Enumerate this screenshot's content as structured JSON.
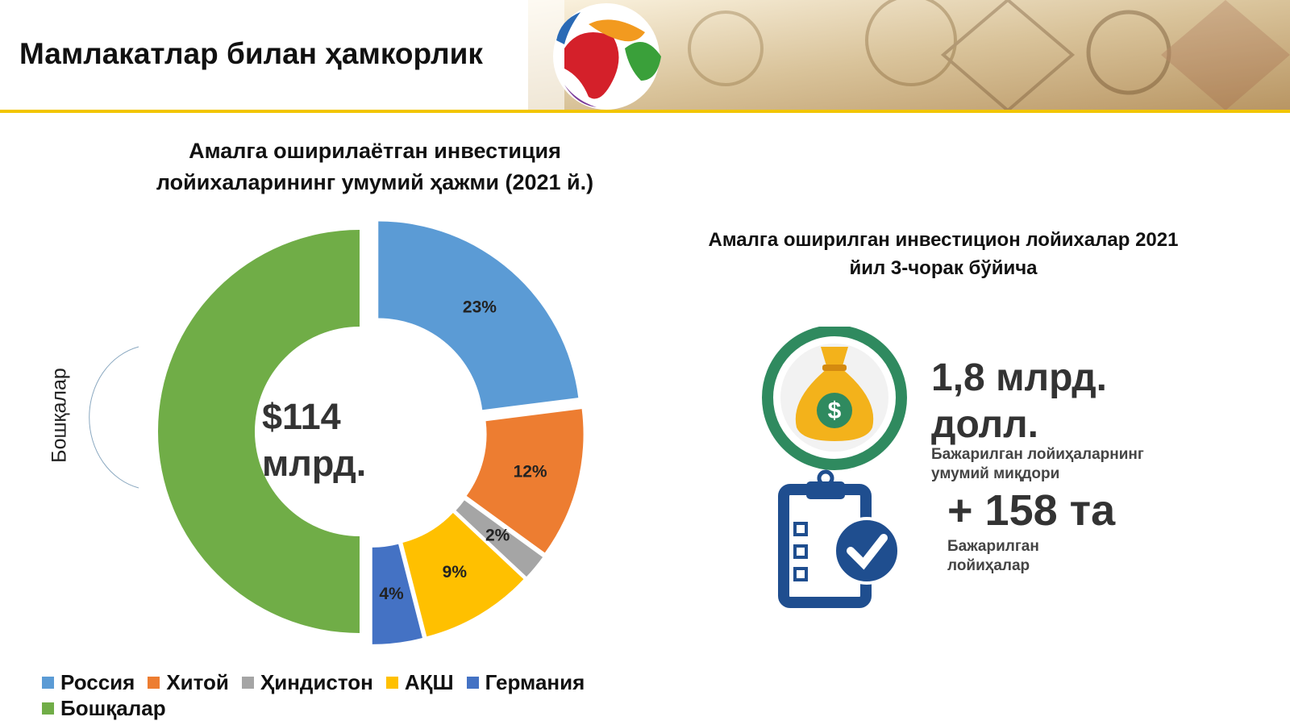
{
  "header": {
    "title": "Мамлакатлар билан ҳамкорлик"
  },
  "chart_data": {
    "type": "donut",
    "title": "Амалга оширилаётган инвестиция лойихаларининг умумий ҳажми (2021 й.)",
    "center_label": "$114 млрд.",
    "side_label": "Бошқалар",
    "categories": [
      "Россия",
      "Хитой",
      "Ҳиндистон",
      "АҚШ",
      "Германия",
      "Бошқалар"
    ],
    "values": [
      23,
      12,
      2,
      9,
      4,
      50
    ],
    "value_labels": [
      "23%",
      "12%",
      "2%",
      "9%",
      "4%",
      null
    ],
    "colors": [
      "#5b9bd5",
      "#ed7d31",
      "#a5a5a5",
      "#ffc000",
      "#4472c4",
      "#70ad47"
    ]
  },
  "stats": {
    "title": "Амалга оширилган инвестицион лойихалар 2021 йил 3-чорак бўйича",
    "items": [
      {
        "value": "1,8 млрд. долл.",
        "label": "Бажарилган лойиҳаларнинг умумий миқдори"
      },
      {
        "value": "+ 158 та",
        "label": "Бажарилган лойиҳалар"
      }
    ]
  }
}
